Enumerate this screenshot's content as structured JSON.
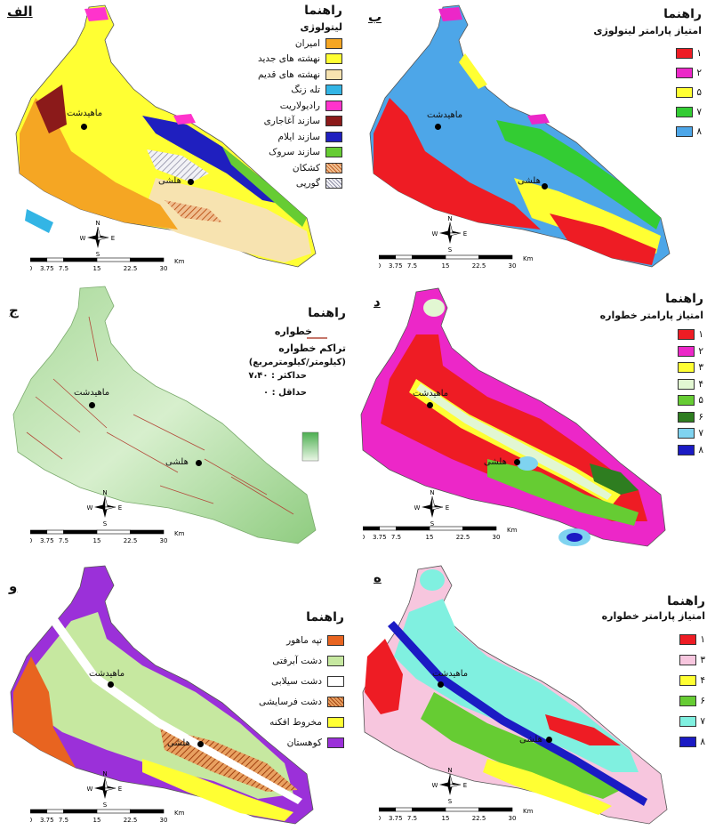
{
  "cities": {
    "mahidasht": "ماهیدشت",
    "halashi": "هلشی"
  },
  "scale": {
    "ticks": [
      "0",
      "3.75",
      "7.5",
      "15",
      "22.5",
      "30"
    ],
    "unit": "Km"
  },
  "compass": {
    "n": "N",
    "s": "S",
    "e": "E",
    "w": "W"
  },
  "panels": {
    "alef": {
      "letter": "الف",
      "title": "راهنما",
      "subtitle": "لیتولوژی",
      "items": [
        {
          "label": "امیران",
          "color": "#f5a623"
        },
        {
          "label": "نهشته های جدید",
          "color": "#ffff33"
        },
        {
          "label": "نهشته های قدیم",
          "color": "#f7e3b0"
        },
        {
          "label": "تله زنگ",
          "color": "#33b5e5"
        },
        {
          "label": "رادیولاریت",
          "color": "#ff33cc"
        },
        {
          "label": "سازند آغاجاری",
          "color": "#8b1a1a"
        },
        {
          "label": "سازند ایلام",
          "color": "#1f1fbf"
        },
        {
          "label": "سازند سروک",
          "color": "#66cc33"
        },
        {
          "label": "کشکان",
          "color": "#e08040"
        },
        {
          "label": "گورپی",
          "color": "#e0e0e8"
        }
      ]
    },
    "be": {
      "letter": "ب",
      "title": "راهنما",
      "subtitle": "امتیاز پارامتر لیتولوژی",
      "items": [
        {
          "label": "۱",
          "color": "#ee1c24"
        },
        {
          "label": "۲",
          "color": "#ec27c8"
        },
        {
          "label": "۵",
          "color": "#ffff33"
        },
        {
          "label": "۷",
          "color": "#33cc33"
        },
        {
          "label": "۸",
          "color": "#4da6e8"
        }
      ]
    },
    "jim": {
      "letter": "ج",
      "title": "راهنما",
      "fault_label": "خطواره",
      "density_label": "تراکم خطواره",
      "density_unit": "(کیلومتر/کیلومترمربع)",
      "max_label": "حداکثر : ۷،۴۰",
      "min_label": "حداقل : ۰",
      "colors": {
        "max": "#4caf50",
        "min": "#eaf6e6",
        "fault": "#b34a3a"
      }
    },
    "dal": {
      "letter": "د",
      "title": "راهنما",
      "subtitle": "امتیاز پارامتر خطواره",
      "items": [
        {
          "label": "۱",
          "color": "#ee1c24"
        },
        {
          "label": "۲",
          "color": "#ec27c8"
        },
        {
          "label": "۳",
          "color": "#ffff33"
        },
        {
          "label": "۴",
          "color": "#e2f7d2"
        },
        {
          "label": "۵",
          "color": "#66cc33"
        },
        {
          "label": "۶",
          "color": "#2e7d20"
        },
        {
          "label": "۷",
          "color": "#7fd3f0"
        },
        {
          "label": "۸",
          "color": "#1b1bc4"
        }
      ]
    },
    "vav": {
      "letter": "و",
      "title": "راهنما",
      "items": [
        {
          "label": "تپه ماهور",
          "color": "#e86420"
        },
        {
          "label": "دشت آبرفتی",
          "color": "#c6e8a0"
        },
        {
          "label": "دشت سیلابی",
          "color": "#ffffff"
        },
        {
          "label": "دشت فرسایشی",
          "color": "#d98040"
        },
        {
          "label": "مخروط افکنه",
          "color": "#ffff33"
        },
        {
          "label": "کوهستان",
          "color": "#9b30d9"
        }
      ]
    },
    "he": {
      "letter": "ه",
      "title": "راهنما",
      "subtitle": "امتیاز پارامتر خطواره",
      "items": [
        {
          "label": "۱",
          "color": "#ee1c24"
        },
        {
          "label": "۳",
          "color": "#f7c6de"
        },
        {
          "label": "۴",
          "color": "#ffff33"
        },
        {
          "label": "۶",
          "color": "#66cc33"
        },
        {
          "label": "۷",
          "color": "#80f0e0"
        },
        {
          "label": "۸",
          "color": "#1b1bc4"
        }
      ]
    }
  }
}
